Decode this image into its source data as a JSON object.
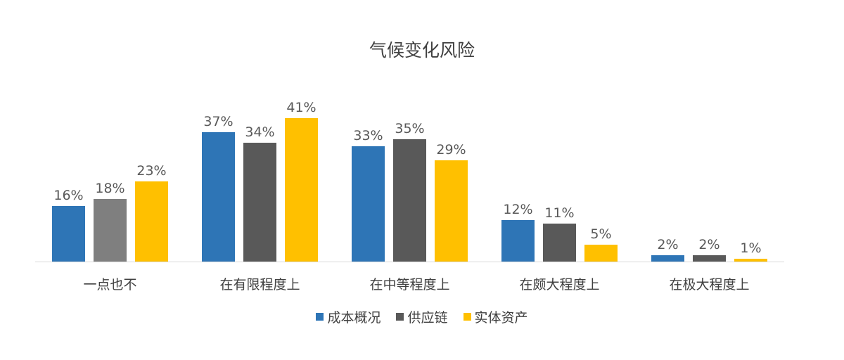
{
  "chart_data": {
    "type": "bar",
    "title": "气候变化风险",
    "categories": [
      "一点也不",
      "在有限程度上",
      "在中等程度上",
      "在颇大程度上",
      "在极大程度上"
    ],
    "series": [
      {
        "name": "成本概况",
        "color": "#2e75b6",
        "values": [
          16,
          37,
          33,
          12,
          2
        ]
      },
      {
        "name": "供应链",
        "color": "#595959",
        "values": [
          18,
          34,
          35,
          11,
          2
        ]
      },
      {
        "name": "实体资产",
        "color": "#ffc000",
        "values": [
          23,
          41,
          29,
          5,
          1
        ]
      }
    ],
    "value_labels": [
      [
        "16%",
        "37%",
        "33%",
        "12%",
        "2%"
      ],
      [
        "18%",
        "34%",
        "35%",
        "11%",
        "2%"
      ],
      [
        "23%",
        "41%",
        "29%",
        "5%",
        "1%"
      ]
    ],
    "xlabel": "",
    "ylabel": "",
    "ylim": [
      0,
      45
    ],
    "grid": false,
    "legend_position": "bottom",
    "notes": "First group's 供应链 bar rendered in lighter gray (#7f7f7f)"
  }
}
